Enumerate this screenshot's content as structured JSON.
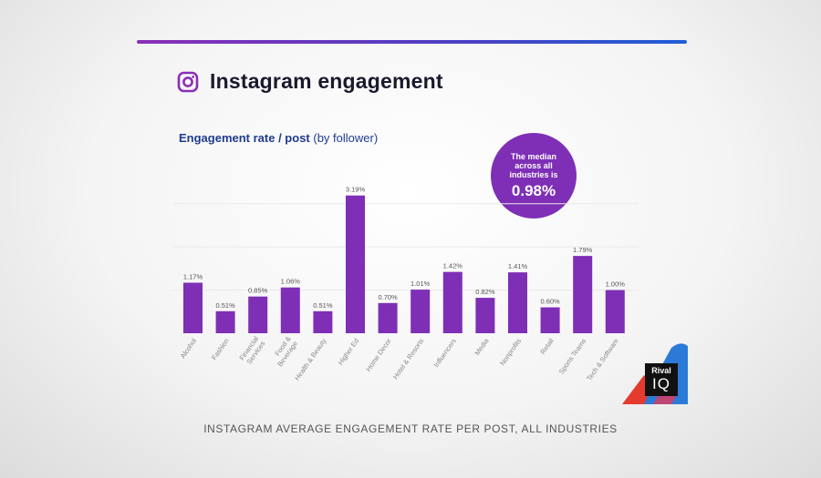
{
  "header": {
    "title": "Instagram engagement",
    "icon": "instagram-icon",
    "rule_gradient": [
      "#8a2fb8",
      "#1f5fd6"
    ]
  },
  "chart_meta": {
    "subtitle_strong": "Engagement rate / post",
    "subtitle_light": "(by follower)"
  },
  "median_callout": {
    "text": "The median across all industries is",
    "value": "0.98%",
    "color": "#7e2fb6"
  },
  "chart_data": {
    "type": "bar",
    "title": "Instagram engagement",
    "subtitle": "Engagement rate / post (by follower)",
    "xlabel": "",
    "ylabel": "",
    "bar_color": "#7e2fb6",
    "ylim": [
      0,
      3.5
    ],
    "grid": true,
    "categories": [
      "Alcohol",
      "Fashion",
      "Financial Services",
      "Food & Beverage",
      "Health & Beauty",
      "Higher Ed",
      "Home Decor",
      "Hotel & Resorts",
      "Influencers",
      "Media",
      "Nonprofits",
      "Retail",
      "Sports Teams",
      "Tech & Software"
    ],
    "values": [
      1.17,
      0.51,
      0.85,
      1.06,
      0.51,
      3.19,
      0.7,
      1.01,
      1.42,
      0.82,
      1.41,
      0.6,
      1.79,
      1.0
    ],
    "value_labels": [
      "1.17%",
      "0.51%",
      "0.85%",
      "1.06%",
      "0.51%",
      "3.19%",
      "0.70%",
      "1.01%",
      "1.42%",
      "0.82%",
      "1.41%",
      "0.60%",
      "1.79%",
      "1.00%"
    ]
  },
  "logo": {
    "line1": "Rival",
    "line2": "IQ"
  },
  "footer": {
    "caption": "INSTAGRAM AVERAGE ENGAGEMENT RATE PER POST, ALL INDUSTRIES"
  }
}
